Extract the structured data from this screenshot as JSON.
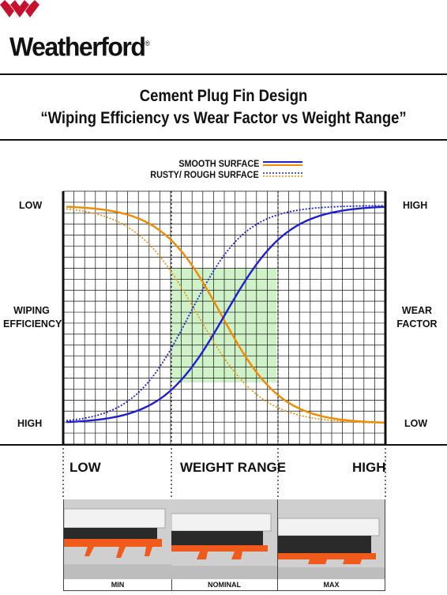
{
  "brand": {
    "name": "Weatherford",
    "registered_mark": "®",
    "logo_color": "#c8102e"
  },
  "title": {
    "line1": "Cement Plug Fin Design",
    "line2": "“Wiping Efficiency vs Wear Factor vs Weight Range”"
  },
  "legend": {
    "smooth": "SMOOTH SURFACE",
    "rough": "RUSTY/ ROUGH SURFACE"
  },
  "axes": {
    "left_top": "LOW",
    "left_middle_line1": "WIPING",
    "left_middle_line2": "EFFICIENCY",
    "left_bottom": "HIGH",
    "right_top": "HIGH",
    "right_middle_line1": "WEAR",
    "right_middle_line2": "FACTOR",
    "right_bottom": "LOW"
  },
  "weight_range": {
    "low": "LOW",
    "label": "WEIGHT RANGE",
    "high": "HIGH"
  },
  "photos": {
    "captions": [
      "MIN",
      "NOMINAL",
      "MAX"
    ]
  },
  "colors": {
    "wiping_curve": "#f08a00",
    "wear_curve": "#1f1fd0",
    "optimal_zone": "#c8f0c0",
    "grid": "#111111",
    "fin": "#f05a1a"
  }
}
